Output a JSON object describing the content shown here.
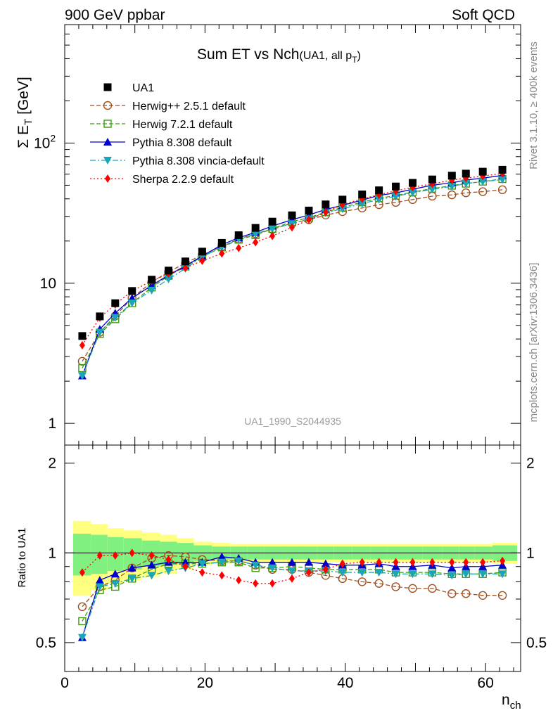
{
  "header": {
    "left": "900 GeV ppbar",
    "right": "Soft QCD"
  },
  "side_labels": {
    "rivet": "Rivet 3.1.10, ≥ 400k events",
    "mcplots": "mcplots.cern.ch [arXiv:1306.3436]"
  },
  "chart_data": {
    "type": "line",
    "title": "Sum ET vs Nch",
    "title_suffix": "(UA1, all p",
    "title_suffix_sub": "T",
    "title_suffix_end": ")",
    "watermark": "UA1_1990_S2044935",
    "xlabel": "n",
    "xlabel_sub": "ch",
    "ylabel_main": "Σ E",
    "ylabel_sub": "T",
    "ylabel_unit": " [GeV]",
    "ylabel_ratio": "Ratio to UA1",
    "xlim": [
      0,
      65
    ],
    "ylim": [
      0.7,
      700
    ],
    "ylim_ratio": [
      0.4,
      2.3
    ],
    "y_scale": "log",
    "x_ticks": [
      "0",
      "20",
      "40",
      "60"
    ],
    "y_tick_labels": [
      {
        "value": 1,
        "label": "1"
      },
      {
        "value": 10,
        "label": "10"
      },
      {
        "value": 100,
        "label": "10",
        "sup": "2"
      }
    ],
    "ratio_tick_labels": [
      {
        "value": 0.5,
        "label": "0.5"
      },
      {
        "value": 1,
        "label": "1"
      },
      {
        "value": 2,
        "label": "2"
      }
    ],
    "x": [
      2.5,
      5,
      7.2,
      9.6,
      12.4,
      14.8,
      17.2,
      19.6,
      22.4,
      24.8,
      27.2,
      29.6,
      32.4,
      34.8,
      37.2,
      39.6,
      42.4,
      44.8,
      47.2,
      49.6,
      52.4,
      55.2,
      57.2,
      59.6,
      62.4
    ],
    "data": {
      "name": "UA1",
      "values": [
        4.2,
        5.8,
        7.2,
        8.8,
        10.6,
        12.3,
        14.3,
        16.8,
        19.4,
        22.0,
        24.8,
        27.5,
        30.5,
        33.0,
        36.5,
        39.5,
        43.0,
        46.0,
        49.0,
        52.0,
        55.0,
        58.5,
        60.5,
        62.5,
        64.5
      ],
      "band_inner": [
        0.16,
        0.15,
        0.13,
        0.12,
        0.1,
        0.09,
        0.08,
        0.06,
        0.05,
        0.05,
        0.05,
        0.05,
        0.05,
        0.05,
        0.05,
        0.05,
        0.05,
        0.05,
        0.05,
        0.05,
        0.05,
        0.05,
        0.05,
        0.05,
        0.06
      ],
      "band_outer": [
        0.28,
        0.25,
        0.21,
        0.19,
        0.17,
        0.15,
        0.12,
        0.09,
        0.08,
        0.07,
        0.07,
        0.07,
        0.07,
        0.07,
        0.07,
        0.07,
        0.07,
        0.07,
        0.07,
        0.07,
        0.07,
        0.07,
        0.07,
        0.07,
        0.08
      ]
    },
    "series": [
      {
        "name": "Herwig++ 2.5.1 default",
        "color": "#a0521e",
        "dash": "6,3",
        "marker": "circle-open",
        "ratio": [
          0.66,
          0.77,
          0.81,
          0.89,
          0.96,
          0.98,
          0.97,
          0.95,
          0.94,
          0.94,
          0.91,
          0.88,
          0.88,
          0.86,
          0.84,
          0.82,
          0.8,
          0.79,
          0.77,
          0.76,
          0.76,
          0.73,
          0.73,
          0.72,
          0.72
        ]
      },
      {
        "name": "Herwig 7.2.1 default",
        "color": "#3f9b0b",
        "dash": "6,3",
        "marker": "square-open",
        "ratio": [
          0.59,
          0.75,
          0.77,
          0.82,
          0.88,
          0.92,
          0.92,
          0.92,
          0.93,
          0.93,
          0.89,
          0.89,
          0.9,
          0.89,
          0.88,
          0.88,
          0.88,
          0.88,
          0.86,
          0.86,
          0.86,
          0.85,
          0.85,
          0.85,
          0.86
        ]
      },
      {
        "name": "Pythia 8.308 default",
        "color": "#0000cc",
        "dash": "",
        "marker": "triangle-up",
        "ratio": [
          0.52,
          0.81,
          0.85,
          0.89,
          0.91,
          0.93,
          0.93,
          0.93,
          0.97,
          0.96,
          0.93,
          0.93,
          0.93,
          0.93,
          0.92,
          0.91,
          0.91,
          0.92,
          0.9,
          0.9,
          0.91,
          0.89,
          0.9,
          0.9,
          0.91
        ]
      },
      {
        "name": "Pythia 8.308 vincia-default",
        "color": "#1aa6b7",
        "dash": "8,3,2,3",
        "marker": "triangle-down",
        "ratio": [
          0.52,
          0.77,
          0.79,
          0.82,
          0.84,
          0.87,
          0.89,
          0.92,
          0.93,
          0.94,
          0.91,
          0.89,
          0.87,
          0.87,
          0.87,
          0.86,
          0.86,
          0.86,
          0.85,
          0.85,
          0.85,
          0.84,
          0.85,
          0.85,
          0.85
        ]
      },
      {
        "name": "Sherpa 2.2.9 default",
        "color": "#ff0000",
        "dash": "2,3",
        "marker": "diamond",
        "ratio": [
          0.86,
          0.98,
          0.98,
          1.0,
          0.98,
          0.95,
          0.9,
          0.86,
          0.84,
          0.81,
          0.79,
          0.79,
          0.82,
          0.86,
          0.88,
          0.92,
          0.93,
          0.93,
          0.93,
          0.93,
          0.93,
          0.93,
          0.93,
          0.93,
          0.94
        ]
      }
    ]
  }
}
